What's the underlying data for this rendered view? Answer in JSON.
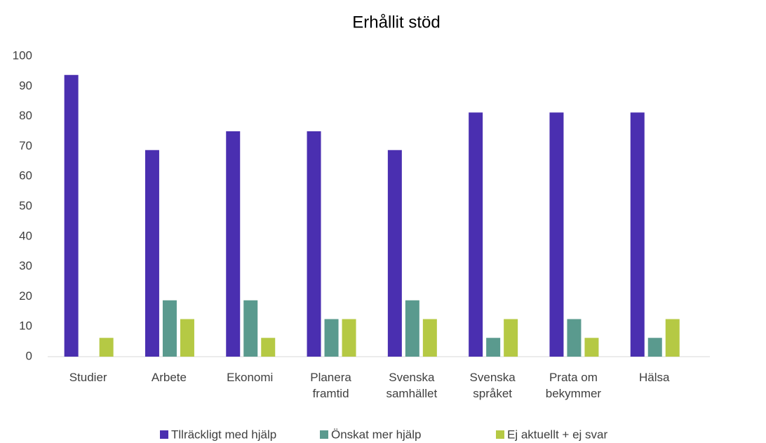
{
  "chart_data": {
    "type": "bar",
    "title": "Erhållit stöd",
    "categories": [
      "Studier",
      "Arbete",
      "Ekonomi",
      "Planera\nframtid",
      "Svenska\nsamhället",
      "Svenska\nspråket",
      "Prata om\nbekymmer",
      "Hälsa"
    ],
    "series": [
      {
        "name": "Tllräckligt med hjälp",
        "color": "#4a2fb0",
        "values": [
          93.75,
          68.75,
          75,
          75,
          68.75,
          81.25,
          81.25,
          81.25
        ]
      },
      {
        "name": "Önskat mer hjälp",
        "color": "#5a9a8e",
        "values": [
          0,
          18.75,
          18.75,
          12.5,
          18.75,
          6.25,
          12.5,
          6.25
        ]
      },
      {
        "name": "Ej aktuellt + ej svar",
        "color": "#b5c944",
        "values": [
          6.25,
          12.5,
          6.25,
          12.5,
          12.5,
          12.5,
          6.25,
          12.5
        ]
      }
    ],
    "ylim": [
      0,
      100
    ],
    "yticks": [
      0,
      10,
      20,
      30,
      40,
      50,
      60,
      70,
      80,
      90,
      100
    ],
    "grid": false,
    "legend": "bottom"
  }
}
